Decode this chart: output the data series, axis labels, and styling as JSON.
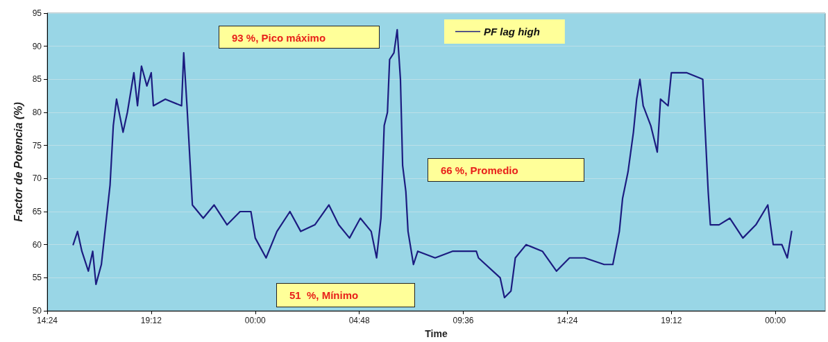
{
  "chart_data": {
    "type": "line",
    "xlabel": "Time",
    "ylabel": "Factor de Potencia (%)",
    "xlim": [
      "2000-01-01T14:24",
      "2000-01-03T02:18"
    ],
    "xticks": [
      {
        "value": "2000-01-01T14:24",
        "label": "14:24"
      },
      {
        "value": "2000-01-01T19:12",
        "label": "19:12"
      },
      {
        "value": "2000-01-02T00:00",
        "label": "00:00"
      },
      {
        "value": "2000-01-02T04:48",
        "label": "04:48"
      },
      {
        "value": "2000-01-02T09:36",
        "label": "09:36"
      },
      {
        "value": "2000-01-02T14:24",
        "label": "14:24"
      },
      {
        "value": "2000-01-02T19:12",
        "label": "19:12"
      },
      {
        "value": "2000-01-03T00:00",
        "label": "00:00"
      }
    ],
    "ylim": [
      50,
      95
    ],
    "yticks": [
      50,
      55,
      60,
      65,
      70,
      75,
      80,
      85,
      90,
      95
    ],
    "grid": "y",
    "legend": "top",
    "marker": "none",
    "line_style": "solid",
    "annotations": [
      "93 %, Pico máximo",
      "51  %, Mínimo",
      "66 %, Promedio"
    ],
    "series": [
      {
        "name": "PF lag high",
        "color": "#1c1c80",
        "x": [
          "2000-01-01T15:36",
          "2000-01-01T15:48",
          "2000-01-01T16:00",
          "2000-01-01T16:18",
          "2000-01-01T16:30",
          "2000-01-01T16:39",
          "2000-01-01T16:54",
          "2000-01-01T17:06",
          "2000-01-01T17:18",
          "2000-01-01T17:27",
          "2000-01-01T17:36",
          "2000-01-01T17:54",
          "2000-01-01T18:06",
          "2000-01-01T18:24",
          "2000-01-01T18:34",
          "2000-01-01T18:45",
          "2000-01-01T19:00",
          "2000-01-01T19:12",
          "2000-01-01T19:18",
          "2000-01-01T19:51",
          "2000-01-01T20:36",
          "2000-01-01T20:42",
          "2000-01-01T20:51",
          "2000-01-01T21:00",
          "2000-01-01T21:06",
          "2000-01-01T21:36",
          "2000-01-01T22:06",
          "2000-01-01T22:42",
          "2000-01-01T23:18",
          "2000-01-01T23:48",
          "2000-01-02T00:00",
          "2000-01-02T00:30",
          "2000-01-02T01:00",
          "2000-01-02T01:36",
          "2000-01-02T02:06",
          "2000-01-02T02:45",
          "2000-01-02T03:24",
          "2000-01-02T03:51",
          "2000-01-02T04:21",
          "2000-01-02T04:51",
          "2000-01-02T05:21",
          "2000-01-02T05:36",
          "2000-01-02T05:48",
          "2000-01-02T05:57",
          "2000-01-02T06:06",
          "2000-01-02T06:12",
          "2000-01-02T06:24",
          "2000-01-02T06:33",
          "2000-01-02T06:42",
          "2000-01-02T06:48",
          "2000-01-02T06:57",
          "2000-01-02T07:03",
          "2000-01-02T07:18",
          "2000-01-02T07:30",
          "2000-01-02T08:18",
          "2000-01-02T09:06",
          "2000-01-02T10:12",
          "2000-01-02T10:18",
          "2000-01-02T11:18",
          "2000-01-02T11:30",
          "2000-01-02T11:48",
          "2000-01-02T12:00",
          "2000-01-02T12:30",
          "2000-01-02T13:15",
          "2000-01-02T13:54",
          "2000-01-02T14:30",
          "2000-01-02T15:12",
          "2000-01-02T16:06",
          "2000-01-02T16:30",
          "2000-01-02T16:48",
          "2000-01-02T16:57",
          "2000-01-02T17:12",
          "2000-01-02T17:27",
          "2000-01-02T17:36",
          "2000-01-02T17:45",
          "2000-01-02T17:54",
          "2000-01-02T18:15",
          "2000-01-02T18:33",
          "2000-01-02T18:42",
          "2000-01-02T19:03",
          "2000-01-02T19:12",
          "2000-01-02T19:54",
          "2000-01-02T20:39",
          "2000-01-02T20:45",
          "2000-01-02T20:54",
          "2000-01-02T21:00",
          "2000-01-02T21:24",
          "2000-01-02T21:54",
          "2000-01-02T22:30",
          "2000-01-02T23:06",
          "2000-01-02T23:39",
          "2000-01-02T23:54",
          "2000-01-03T00:18",
          "2000-01-03T00:33",
          "2000-01-03T00:45"
        ],
        "values": [
          60,
          62,
          59,
          56,
          59,
          54,
          57,
          63,
          69,
          78,
          82,
          77,
          80,
          86,
          81,
          87,
          84,
          86,
          81,
          82,
          81,
          89,
          81,
          72,
          66,
          64,
          66,
          63,
          65,
          65,
          61,
          58,
          62,
          65,
          62,
          63,
          66,
          63,
          61,
          64,
          62,
          58,
          64,
          78,
          80,
          88,
          89,
          92.5,
          85,
          72,
          68,
          62,
          57,
          59,
          58,
          59,
          59,
          58,
          55,
          52,
          53,
          58,
          60,
          59,
          56,
          58,
          58,
          57,
          57,
          62,
          67,
          71,
          77,
          82,
          85,
          81,
          78,
          74,
          82,
          81,
          86,
          86,
          85,
          78,
          68,
          63,
          63,
          64,
          61,
          63,
          66,
          60,
          60,
          58,
          62
        ]
      }
    ]
  }
}
